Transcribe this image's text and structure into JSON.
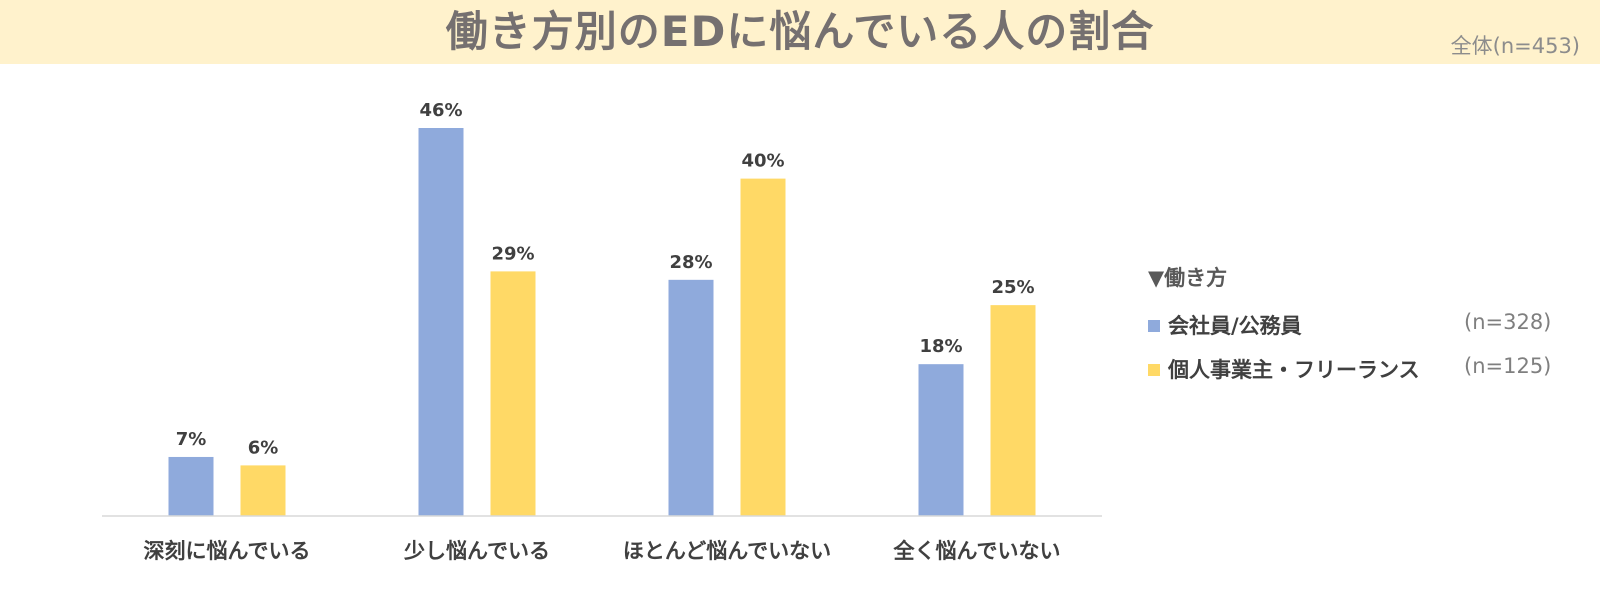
{
  "title": "働き方別のEDに悩んでいる人の割合",
  "sample_note": "全体(n=453)",
  "colors": {
    "title_band": "#fff2cc",
    "series_1": "#8faadc",
    "series_2": "#ffd966"
  },
  "legend": {
    "title": "▼働き方",
    "items": [
      {
        "label": "会社員/公務員",
        "n": "(n=328)"
      },
      {
        "label": "個人事業主・フリーランス",
        "n": "(n=125)"
      }
    ]
  },
  "chart_data": {
    "type": "bar",
    "categories": [
      "深刻に悩んでいる",
      "少し悩んでいる",
      "ほとんど悩んでいない",
      "全く悩んでいない"
    ],
    "series": [
      {
        "name": "会社員/公務員",
        "values": [
          7,
          46,
          28,
          18
        ],
        "labels": [
          "7%",
          "46%",
          "28%",
          "18%"
        ],
        "color": "#8faadc"
      },
      {
        "name": "個人事業主・フリーランス",
        "values": [
          6,
          29,
          40,
          25
        ],
        "labels": [
          "6%",
          "29%",
          "40%",
          "25%"
        ],
        "color": "#ffd966"
      }
    ],
    "unit": "%",
    "ylim": [
      0,
      50
    ],
    "grid": false,
    "legend_position": "right"
  }
}
